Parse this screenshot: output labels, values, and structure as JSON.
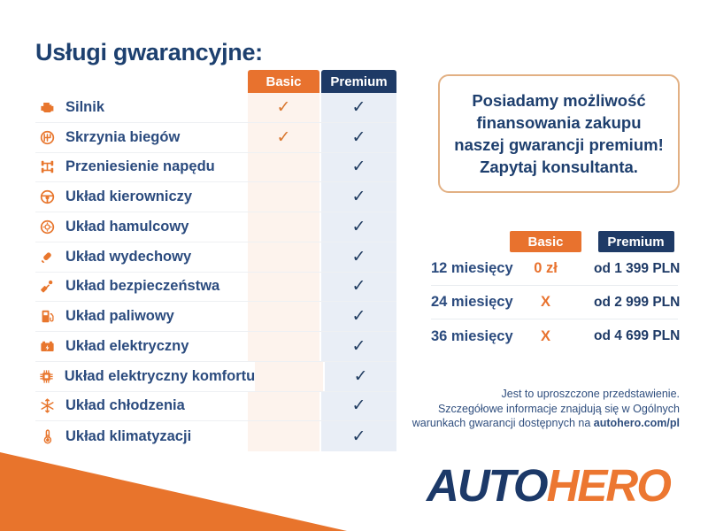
{
  "page": {
    "title": "Usługi gwarancyjne:"
  },
  "colors": {
    "orange": "#E8722E",
    "navy": "#1E3A66",
    "navy_text": "#2B4B7E",
    "basic_tint": "#FDF3ED",
    "premium_tint": "#E9EEF6",
    "box_border": "#E2B083"
  },
  "warranty_table": {
    "columns": {
      "basic": "Basic",
      "premium": "Premium"
    },
    "check_glyph": "✓",
    "rows": [
      {
        "icon": "engine-icon",
        "label": "Silnik",
        "basic": true,
        "premium": true
      },
      {
        "icon": "gearbox-icon",
        "label": "Skrzynia biegów",
        "basic": true,
        "premium": true
      },
      {
        "icon": "drivetrain-icon",
        "label": "Przeniesienie napędu",
        "basic": false,
        "premium": true
      },
      {
        "icon": "steering-wheel-icon",
        "label": "Układ kierowniczy",
        "basic": false,
        "premium": true
      },
      {
        "icon": "brake-icon",
        "label": "Układ hamulcowy",
        "basic": false,
        "premium": true
      },
      {
        "icon": "exhaust-icon",
        "label": "Układ wydechowy",
        "basic": false,
        "premium": true
      },
      {
        "icon": "seatbelt-icon",
        "label": "Układ bezpieczeństwa",
        "basic": false,
        "premium": true
      },
      {
        "icon": "fuel-icon",
        "label": "Układ paliwowy",
        "basic": false,
        "premium": true
      },
      {
        "icon": "battery-icon",
        "label": "Układ elektryczny",
        "basic": false,
        "premium": true
      },
      {
        "icon": "chip-icon",
        "label": "Układ elektryczny komfortu",
        "basic": false,
        "premium": true
      },
      {
        "icon": "snowflake-icon",
        "label": "Układ chłodzenia",
        "basic": false,
        "premium": true
      },
      {
        "icon": "thermometer-icon",
        "label": "Układ klimatyzacji",
        "basic": false,
        "premium": true
      }
    ]
  },
  "info_box": {
    "lines": [
      "Posiadamy możliwość",
      "finansowania zakupu",
      "naszej gwarancji premium!",
      "Zapytaj konsultanta."
    ]
  },
  "pricing_table": {
    "columns": {
      "basic": "Basic",
      "premium": "Premium"
    },
    "rows": [
      {
        "period": "12 miesięcy",
        "basic": "0 zł",
        "premium": "od 1 399 PLN"
      },
      {
        "period": "24 miesięcy",
        "basic": "X",
        "premium": "od 2 999 PLN"
      },
      {
        "period": "36 miesięcy",
        "basic": "X",
        "premium": "od 4 699 PLN"
      }
    ]
  },
  "disclaimer": {
    "line1": "Jest to uproszczone przedstawienie.",
    "line2": "Szczegółowe informacje znajdują się w Ogólnych",
    "line3_prefix": "warunkach gwarancji dostępnych na ",
    "line3_bold": "autohero.com/pl"
  },
  "logo": {
    "part1": "AUTO",
    "part2": "HERO"
  }
}
